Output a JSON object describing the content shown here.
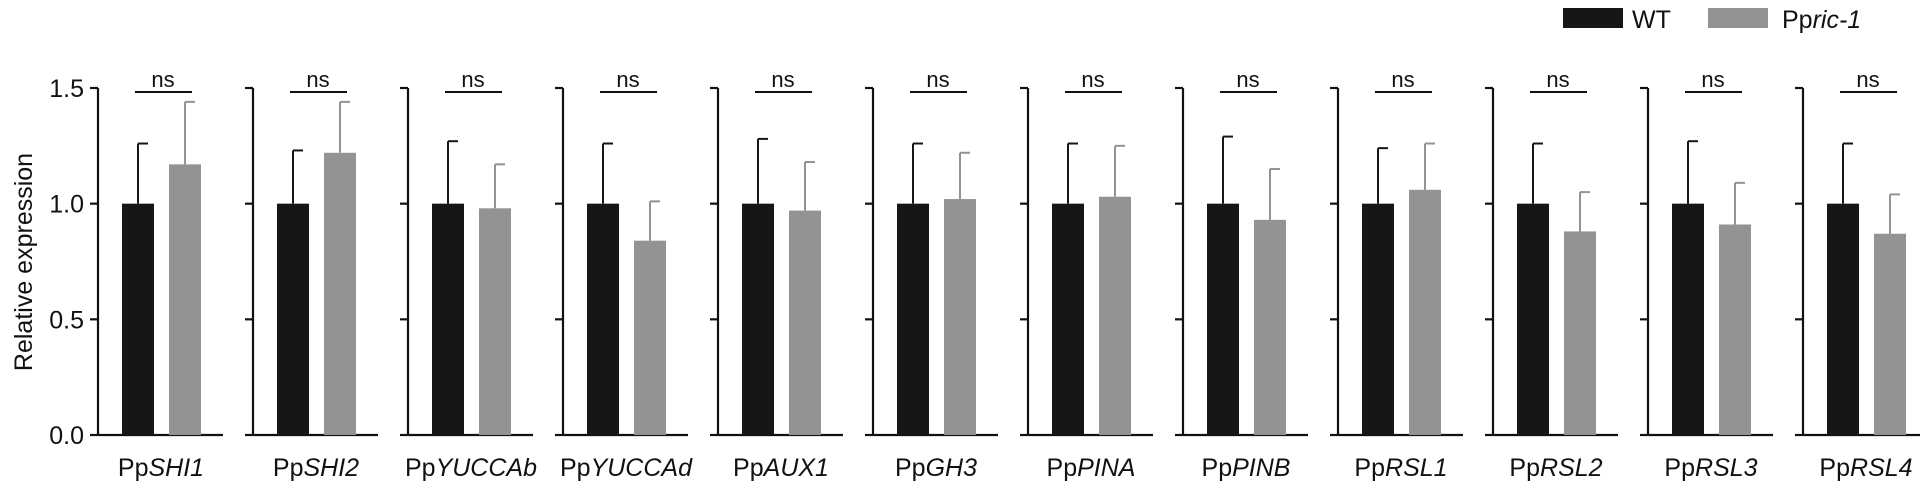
{
  "chart_data": {
    "type": "bar",
    "ylabel": "Relative expression",
    "ylim": [
      0,
      1.5
    ],
    "yticks": [
      "0.0",
      "0.5",
      "1.0",
      "1.5"
    ],
    "legend": {
      "placement": "top-right"
    },
    "series": [
      {
        "name": "WT",
        "color": "#161616"
      },
      {
        "name_prefix": "Pp",
        "name_italic": "ric-1",
        "color": "#939393"
      }
    ],
    "significance_label": "ns",
    "groups": [
      {
        "prefix": "Pp",
        "gene": "SHI1",
        "values": [
          1.0,
          1.17
        ],
        "errors": [
          0.26,
          0.27
        ]
      },
      {
        "prefix": "Pp",
        "gene": "SHI2",
        "values": [
          1.0,
          1.22
        ],
        "errors": [
          0.23,
          0.22
        ]
      },
      {
        "prefix": "Pp",
        "gene": "YUCCAb",
        "values": [
          1.0,
          0.98
        ],
        "errors": [
          0.27,
          0.19
        ]
      },
      {
        "prefix": "Pp",
        "gene": "YUCCAd",
        "values": [
          1.0,
          0.84
        ],
        "errors": [
          0.26,
          0.17
        ]
      },
      {
        "prefix": "Pp",
        "gene": "AUX1",
        "values": [
          1.0,
          0.97
        ],
        "errors": [
          0.28,
          0.21
        ]
      },
      {
        "prefix": "Pp",
        "gene": "GH3",
        "values": [
          1.0,
          1.02
        ],
        "errors": [
          0.26,
          0.2
        ]
      },
      {
        "prefix": "Pp",
        "gene": "PINA",
        "values": [
          1.0,
          1.03
        ],
        "errors": [
          0.26,
          0.22
        ]
      },
      {
        "prefix": "Pp",
        "gene": "PINB",
        "values": [
          1.0,
          0.93
        ],
        "errors": [
          0.29,
          0.22
        ]
      },
      {
        "prefix": "Pp",
        "gene": "RSL1",
        "values": [
          1.0,
          1.06
        ],
        "errors": [
          0.24,
          0.2
        ]
      },
      {
        "prefix": "Pp",
        "gene": "RSL2",
        "values": [
          1.0,
          0.88
        ],
        "errors": [
          0.26,
          0.17
        ]
      },
      {
        "prefix": "Pp",
        "gene": "RSL3",
        "values": [
          1.0,
          0.91
        ],
        "errors": [
          0.27,
          0.18
        ]
      },
      {
        "prefix": "Pp",
        "gene": "RSL4",
        "values": [
          1.0,
          0.87
        ],
        "errors": [
          0.26,
          0.17
        ]
      }
    ]
  }
}
